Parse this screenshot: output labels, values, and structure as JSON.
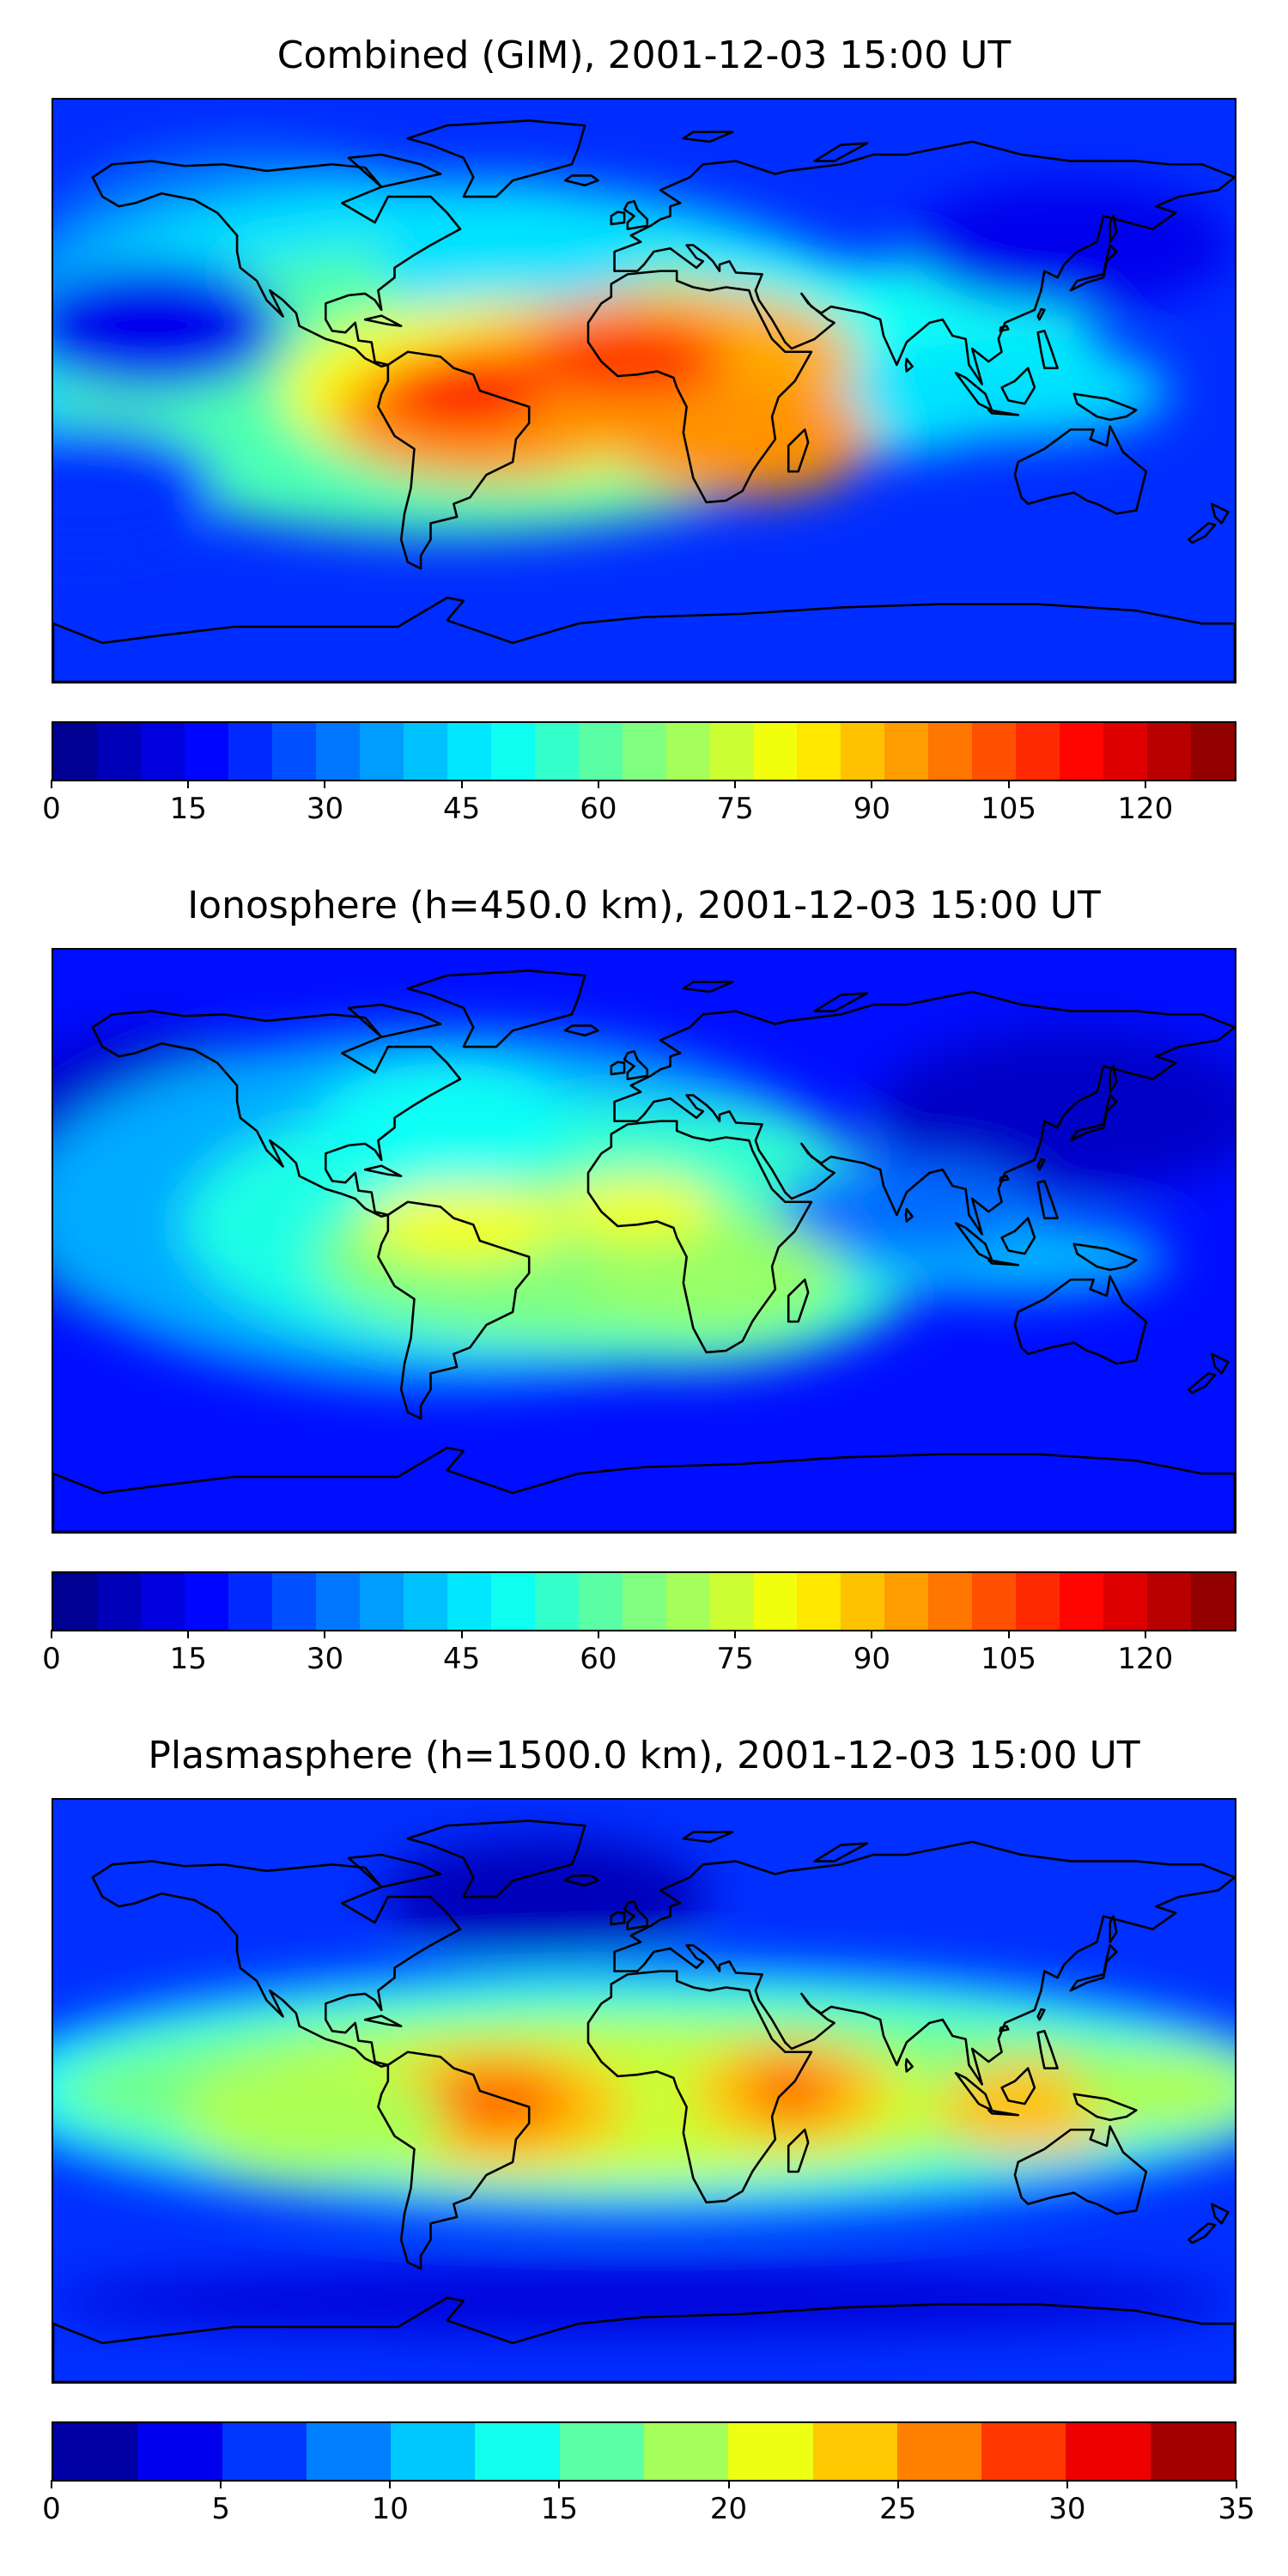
{
  "chart_data": [
    {
      "type": "heatmap",
      "title": "Combined (GIM), 2001-12-03 15:00 UT",
      "colorbar": {
        "levels": 27,
        "vmin": 0,
        "vmax": 130,
        "ticks": [
          0,
          15,
          30,
          45,
          60,
          75,
          90,
          105,
          120
        ],
        "tick_labels": [
          "0",
          "15",
          "30",
          "45",
          "60",
          "75",
          "90",
          "105",
          "120"
        ]
      },
      "features": [
        {
          "name": "South America maximum",
          "lon": -55,
          "lat": 0,
          "value": 115
        },
        {
          "name": "West Africa maximum",
          "lon": 0,
          "lat": 8,
          "value": 105
        },
        {
          "name": "Southern Africa band",
          "lon": 30,
          "lat": -15,
          "value": 95
        },
        {
          "name": "Atlantic equatorial band",
          "lon": -30,
          "lat": -5,
          "value": 90
        },
        {
          "name": "Indian Ocean band",
          "lon": 75,
          "lat": 0,
          "value": 55
        },
        {
          "name": "Pacific low",
          "lon": -150,
          "lat": 20,
          "value": 18
        },
        {
          "name": "East Asia low",
          "lon": 130,
          "lat": 45,
          "value": 15
        },
        {
          "name": "Southern Ocean low",
          "lon": 0,
          "lat": -70,
          "value": 25
        }
      ]
    },
    {
      "type": "heatmap",
      "title": "Ionosphere  (h=450.0 km), 2001-12-03 15:00 UT",
      "colorbar": {
        "levels": 27,
        "vmin": 0,
        "vmax": 130,
        "ticks": [
          0,
          15,
          30,
          45,
          60,
          75,
          90,
          105,
          120
        ],
        "tick_labels": [
          "0",
          "15",
          "30",
          "45",
          "60",
          "75",
          "90",
          "105",
          "120"
        ]
      },
      "features": [
        {
          "name": "South America maximum",
          "lon": -60,
          "lat": 5,
          "value": 82
        },
        {
          "name": "West Africa maximum",
          "lon": 0,
          "lat": 10,
          "value": 80
        },
        {
          "name": "Atlantic equatorial band",
          "lon": -25,
          "lat": -5,
          "value": 72
        },
        {
          "name": "Africa interior",
          "lon": 20,
          "lat": -10,
          "value": 70
        },
        {
          "name": "Pacific low",
          "lon": -160,
          "lat": 30,
          "value": 8
        },
        {
          "name": "East Asia low",
          "lon": 130,
          "lat": 35,
          "value": 8
        },
        {
          "name": "Southern Ocean low",
          "lon": 0,
          "lat": -70,
          "value": 18
        }
      ]
    },
    {
      "type": "heatmap",
      "title": "Plasmasphere (h=1500.0 km), 2001-12-03 15:00 UT",
      "colorbar": {
        "levels": 14,
        "vmin": 0,
        "vmax": 35,
        "ticks": [
          0,
          5,
          10,
          15,
          20,
          25,
          30,
          35
        ],
        "tick_labels": [
          "0",
          "5",
          "10",
          "15",
          "20",
          "25",
          "30",
          "35"
        ]
      },
      "features": [
        {
          "name": "South America maximum",
          "lon": -45,
          "lat": -5,
          "value": 27
        },
        {
          "name": "East Africa maximum",
          "lon": 45,
          "lat": 0,
          "value": 27
        },
        {
          "name": "Indonesia maximum",
          "lon": 120,
          "lat": -5,
          "value": 24
        },
        {
          "name": "Tropical band",
          "lon": 0,
          "lat": 0,
          "value": 21
        },
        {
          "name": "North Atlantic low",
          "lon": -30,
          "lat": 60,
          "value": 2
        },
        {
          "name": "Southern Ocean low",
          "lon": 0,
          "lat": -65,
          "value": 4
        }
      ]
    }
  ]
}
